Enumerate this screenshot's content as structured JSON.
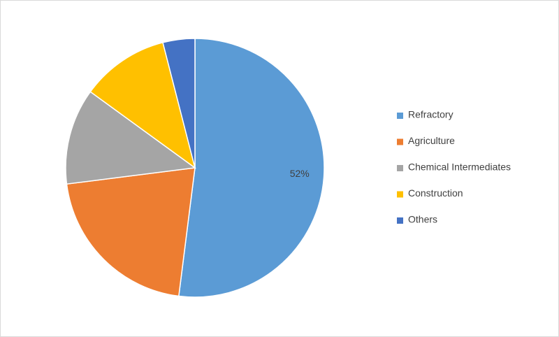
{
  "chart_data": {
    "type": "pie",
    "categories": [
      "Refractory",
      "Agriculture",
      "Chemical Intermediates",
      "Construction",
      "Others"
    ],
    "values": [
      52,
      21,
      12,
      11,
      4
    ],
    "value_labels": [
      "52%",
      null,
      null,
      null,
      null
    ],
    "colors": [
      "#5b9bd5",
      "#ed7d31",
      "#a5a5a5",
      "#ffc000",
      "#4472c4"
    ],
    "legend": "right"
  }
}
